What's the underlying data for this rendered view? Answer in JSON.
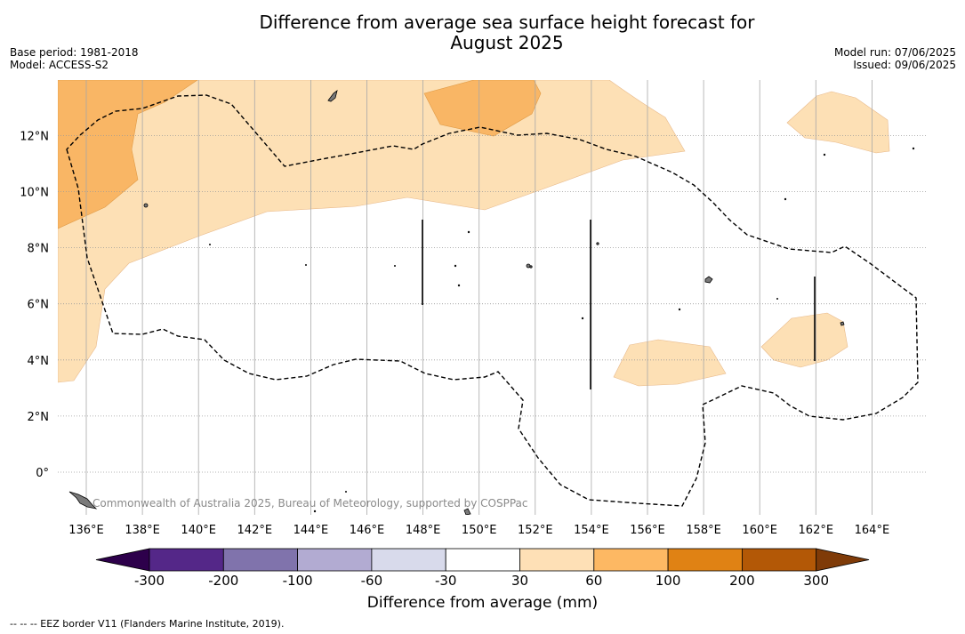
{
  "title": {
    "line1": "Difference from average sea surface height forecast for",
    "line2": "August 2025"
  },
  "meta_left": [
    "Base period: 1981-2018",
    "Model: ACCESS-S2"
  ],
  "meta_right": [
    "Model run: 07/06/2025",
    "Issued: 09/06/2025"
  ],
  "map": {
    "lon_range": [
      "135",
      "166"
    ],
    "lat_range": [
      "-1.5",
      "14"
    ],
    "lon_ticks": [
      {
        "value": "136",
        "label": "136°E"
      },
      {
        "value": "138",
        "label": "138°E"
      },
      {
        "value": "140",
        "label": "140°E"
      },
      {
        "value": "142",
        "label": "142°E"
      },
      {
        "value": "144",
        "label": "144°E"
      },
      {
        "value": "146",
        "label": "146°E"
      },
      {
        "value": "148",
        "label": "148°E"
      },
      {
        "value": "150",
        "label": "150°E"
      },
      {
        "value": "152",
        "label": "152°E"
      },
      {
        "value": "154",
        "label": "154°E"
      },
      {
        "value": "156",
        "label": "156°E"
      },
      {
        "value": "158",
        "label": "158°E"
      },
      {
        "value": "160",
        "label": "160°E"
      },
      {
        "value": "162",
        "label": "162°E"
      },
      {
        "value": "164",
        "label": "164°E"
      }
    ],
    "lat_ticks": [
      {
        "value": "0",
        "label": "0°"
      },
      {
        "value": "2",
        "label": "2°N"
      },
      {
        "value": "4",
        "label": "4°N"
      },
      {
        "value": "6",
        "label": "6°N"
      },
      {
        "value": "8",
        "label": "8°N"
      },
      {
        "value": "10",
        "label": "10°N"
      },
      {
        "value": "12",
        "label": "12°N"
      }
    ],
    "grid": "on",
    "attribution": "Commonwealth of Australia 2025, Bureau of Meteorology, supported by COSPPac",
    "colors": {
      "band_30_60": "#fde0b5",
      "band_60_100": "#f9b665",
      "eez_line": "#000000",
      "land": "#808080"
    }
  },
  "colorbar": {
    "title": "Difference from average (mm)",
    "ticks": [
      "-300",
      "-200",
      "-100",
      "-60",
      "-30",
      "30",
      "60",
      "100",
      "200",
      "300"
    ],
    "colors": [
      "#2d004b",
      "#542788",
      "#8073ac",
      "#b2abd2",
      "#d8daeb",
      "#ffffff",
      "#fee0b6",
      "#fdb863",
      "#e08214",
      "#b35806",
      "#7f3b08"
    ]
  },
  "footnote": "--  --  -- EEZ border V11 (Flanders Marine Institute, 2019)."
}
